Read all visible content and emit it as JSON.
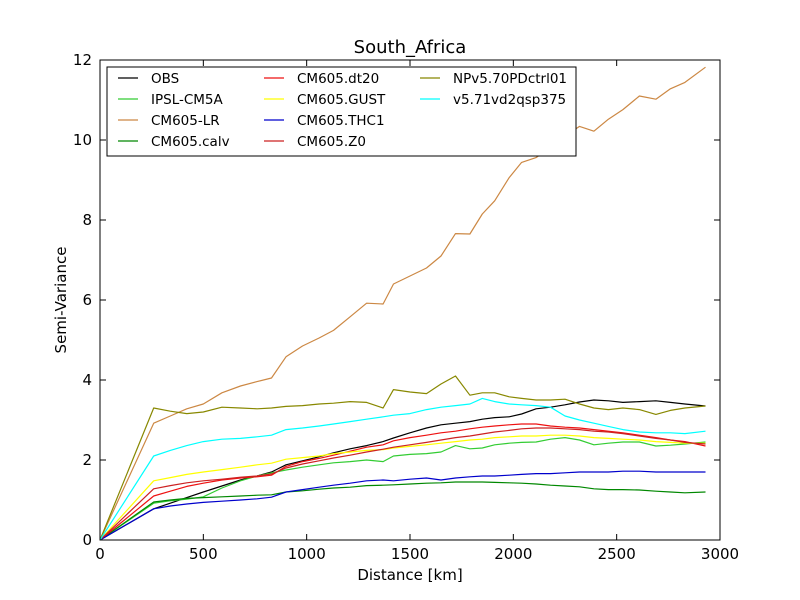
{
  "chart_data": {
    "type": "line",
    "title": "South_Africa",
    "xlabel": "Distance [km]",
    "ylabel": "Semi-Variance",
    "xlim": [
      0,
      3000
    ],
    "ylim": [
      0,
      12
    ],
    "xticks": [
      0,
      500,
      1000,
      1500,
      2000,
      2500,
      3000
    ],
    "yticks": [
      0,
      2,
      4,
      6,
      8,
      10,
      12
    ],
    "grid": false,
    "legend_position": "top-left",
    "legend_columns": 3,
    "x": [
      0,
      260,
      340,
      420,
      500,
      590,
      680,
      760,
      830,
      900,
      980,
      1060,
      1130,
      1210,
      1290,
      1370,
      1420,
      1500,
      1580,
      1650,
      1720,
      1790,
      1850,
      1910,
      1980,
      2040,
      2110,
      2180,
      2250,
      2320,
      2390,
      2460,
      2530,
      2610,
      2690,
      2760,
      2830,
      2930
    ],
    "series": [
      {
        "name": "OBS",
        "color": "#000000",
        "values": [
          0,
          0.78,
          0.92,
          1.06,
          1.2,
          1.35,
          1.5,
          1.6,
          1.7,
          1.88,
          1.98,
          2.08,
          2.18,
          2.28,
          2.36,
          2.46,
          2.55,
          2.68,
          2.8,
          2.88,
          2.92,
          2.96,
          3.02,
          3.06,
          3.08,
          3.15,
          3.28,
          3.32,
          3.38,
          3.45,
          3.5,
          3.48,
          3.44,
          3.46,
          3.48,
          3.44,
          3.4,
          3.35
        ]
      },
      {
        "name": "IPSL-CM5A",
        "color": "#33cc33",
        "values": [
          0,
          0.92,
          0.98,
          1.02,
          1.08,
          1.3,
          1.48,
          1.6,
          1.68,
          1.75,
          1.82,
          1.88,
          1.93,
          1.96,
          2.0,
          1.96,
          2.1,
          2.14,
          2.16,
          2.2,
          2.36,
          2.28,
          2.3,
          2.38,
          2.42,
          2.44,
          2.45,
          2.52,
          2.56,
          2.5,
          2.38,
          2.42,
          2.45,
          2.45,
          2.35,
          2.37,
          2.4,
          2.45
        ]
      },
      {
        "name": "CM605-LR",
        "color": "#cc8844",
        "values": [
          0,
          2.92,
          3.1,
          3.28,
          3.4,
          3.68,
          3.85,
          3.96,
          4.05,
          4.58,
          4.85,
          5.05,
          5.24,
          5.58,
          5.92,
          5.9,
          6.4,
          6.6,
          6.8,
          7.1,
          7.66,
          7.65,
          8.15,
          8.48,
          9.06,
          9.44,
          9.56,
          9.82,
          10.1,
          10.34,
          10.22,
          10.52,
          10.76,
          11.1,
          11.02,
          11.28,
          11.44,
          11.82
        ]
      },
      {
        "name": "CM605.calv",
        "color": "#008800",
        "values": [
          0,
          0.95,
          1.0,
          1.04,
          1.06,
          1.08,
          1.1,
          1.12,
          1.13,
          1.2,
          1.23,
          1.27,
          1.3,
          1.32,
          1.36,
          1.37,
          1.38,
          1.4,
          1.42,
          1.43,
          1.45,
          1.45,
          1.45,
          1.44,
          1.43,
          1.42,
          1.4,
          1.37,
          1.35,
          1.33,
          1.28,
          1.26,
          1.26,
          1.25,
          1.22,
          1.2,
          1.18,
          1.2
        ]
      },
      {
        "name": "CM605.dt20",
        "color": "#ee1111",
        "values": [
          0,
          1.1,
          1.22,
          1.34,
          1.42,
          1.5,
          1.55,
          1.58,
          1.62,
          1.84,
          1.96,
          2.04,
          2.12,
          2.22,
          2.32,
          2.38,
          2.48,
          2.56,
          2.62,
          2.68,
          2.72,
          2.78,
          2.82,
          2.85,
          2.88,
          2.9,
          2.9,
          2.85,
          2.82,
          2.8,
          2.76,
          2.72,
          2.68,
          2.62,
          2.56,
          2.5,
          2.46,
          2.35
        ]
      },
      {
        "name": "CM605.GUST",
        "color": "#ffff00",
        "values": [
          0,
          1.48,
          1.56,
          1.64,
          1.7,
          1.76,
          1.82,
          1.88,
          1.92,
          2.02,
          2.06,
          2.1,
          2.16,
          2.2,
          2.24,
          2.26,
          2.3,
          2.34,
          2.38,
          2.42,
          2.46,
          2.5,
          2.52,
          2.56,
          2.58,
          2.6,
          2.6,
          2.62,
          2.62,
          2.6,
          2.56,
          2.54,
          2.52,
          2.5,
          2.46,
          2.44,
          2.42,
          2.42
        ]
      },
      {
        "name": "CM605.THC1",
        "color": "#0000cc",
        "values": [
          0,
          0.78,
          0.85,
          0.9,
          0.94,
          0.97,
          1.0,
          1.03,
          1.07,
          1.2,
          1.26,
          1.32,
          1.37,
          1.42,
          1.48,
          1.5,
          1.48,
          1.52,
          1.55,
          1.5,
          1.55,
          1.58,
          1.6,
          1.6,
          1.62,
          1.64,
          1.66,
          1.66,
          1.68,
          1.7,
          1.7,
          1.7,
          1.72,
          1.72,
          1.7,
          1.7,
          1.7,
          1.7
        ]
      },
      {
        "name": "CM605.Z0",
        "color": "#cc2222",
        "values": [
          0,
          1.28,
          1.36,
          1.43,
          1.48,
          1.52,
          1.57,
          1.6,
          1.65,
          1.8,
          1.9,
          1.98,
          2.05,
          2.12,
          2.2,
          2.27,
          2.32,
          2.38,
          2.44,
          2.5,
          2.56,
          2.6,
          2.65,
          2.7,
          2.74,
          2.78,
          2.8,
          2.8,
          2.78,
          2.76,
          2.72,
          2.7,
          2.66,
          2.6,
          2.54,
          2.5,
          2.44,
          2.4
        ]
      },
      {
        "name": "NPv5.70PDctrl01",
        "color": "#888800",
        "values": [
          0,
          3.3,
          3.22,
          3.16,
          3.2,
          3.32,
          3.3,
          3.28,
          3.3,
          3.34,
          3.36,
          3.4,
          3.42,
          3.46,
          3.44,
          3.3,
          3.76,
          3.7,
          3.66,
          3.9,
          4.1,
          3.62,
          3.68,
          3.68,
          3.58,
          3.54,
          3.5,
          3.5,
          3.52,
          3.4,
          3.3,
          3.26,
          3.3,
          3.26,
          3.14,
          3.24,
          3.3,
          3.35
        ]
      },
      {
        "name": "v5.71vd2qsp375",
        "color": "#00ffff",
        "values": [
          0,
          2.1,
          2.24,
          2.36,
          2.46,
          2.52,
          2.54,
          2.58,
          2.62,
          2.76,
          2.8,
          2.85,
          2.9,
          2.96,
          3.02,
          3.08,
          3.12,
          3.16,
          3.26,
          3.32,
          3.36,
          3.4,
          3.54,
          3.46,
          3.4,
          3.38,
          3.36,
          3.32,
          3.1,
          3.0,
          2.92,
          2.84,
          2.76,
          2.7,
          2.68,
          2.68,
          2.66,
          2.72
        ]
      }
    ]
  }
}
